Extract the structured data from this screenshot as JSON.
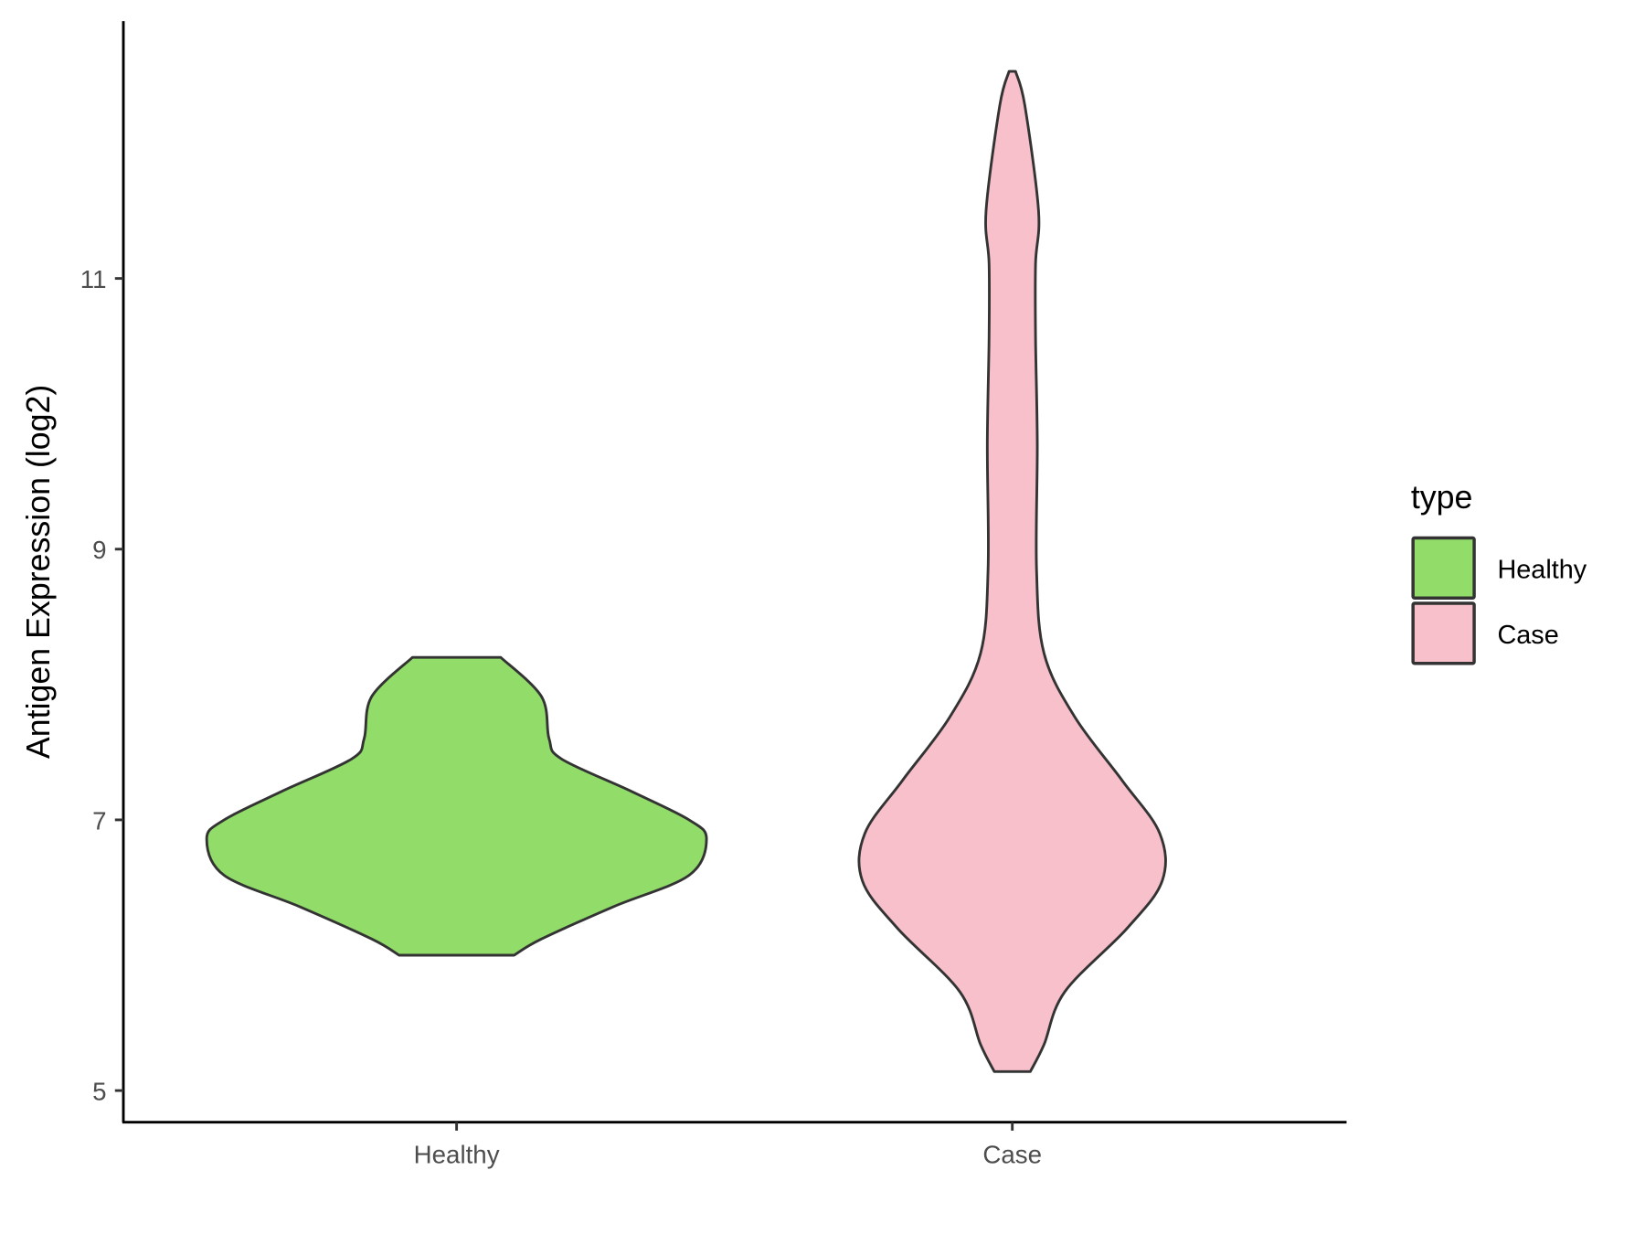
{
  "chart_data": {
    "type": "violin",
    "title": "",
    "xlabel": "",
    "ylabel": "Antigen Expression (log2)",
    "ylim": [
      4.78,
      13.05
    ],
    "yticks": [
      5,
      7,
      9,
      11
    ],
    "ytick_labels": [
      "5",
      "7",
      "9",
      "11"
    ],
    "categories": [
      "Healthy",
      "Case"
    ],
    "grid": false,
    "legend": {
      "title": "type",
      "position": "right",
      "entries": [
        {
          "label": "Healthy",
          "color": "#92DC6A"
        },
        {
          "label": "Case",
          "color": "#F7C0CB"
        }
      ]
    },
    "outline_color": "#333333",
    "series": [
      {
        "category": "Healthy",
        "color": "#92DC6A",
        "min": 6.0,
        "max": 8.2,
        "density_profile": {
          "y": [
            6.0,
            6.12,
            6.36,
            6.59,
            6.86,
            7.0,
            7.21,
            7.45,
            7.6,
            7.91,
            8.2
          ],
          "relative_width": [
            0.23,
            0.34,
            0.63,
            0.93,
            1.0,
            0.93,
            0.7,
            0.42,
            0.37,
            0.34,
            0.177
          ]
        }
      },
      {
        "category": "Case",
        "color": "#F7C0CB",
        "min": 5.14,
        "max": 12.53,
        "density_profile": {
          "y": [
            5.14,
            5.34,
            5.73,
            6.2,
            6.55,
            6.9,
            7.29,
            7.76,
            8.23,
            8.85,
            9.78,
            10.56,
            11.11,
            11.5,
            12.28,
            12.53
          ],
          "relative_width": [
            0.072,
            0.127,
            0.21,
            0.46,
            0.6,
            0.59,
            0.44,
            0.25,
            0.127,
            0.097,
            0.1,
            0.093,
            0.093,
            0.105,
            0.05,
            0.013
          ]
        }
      }
    ]
  }
}
